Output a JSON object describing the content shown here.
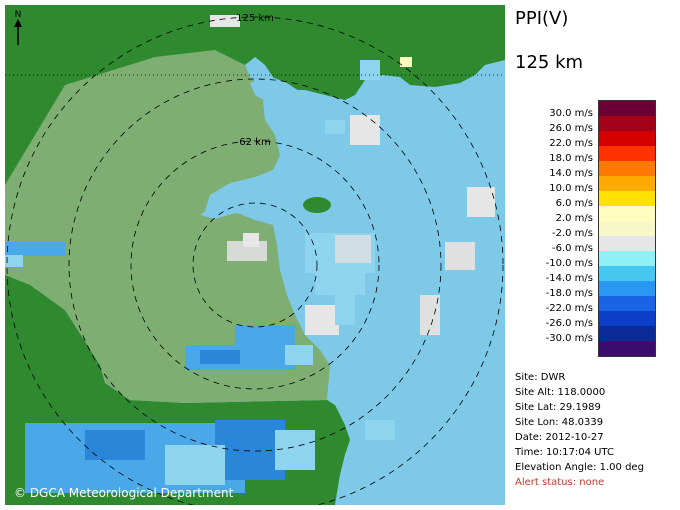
{
  "product": {
    "title": "PPI(V)",
    "range": "125 km"
  },
  "map": {
    "range_labels": [
      "125 km",
      "62 km"
    ],
    "north_label": "N",
    "copyright": "© DGCA Meteorological Department",
    "colors": {
      "land": "#2f8a2f",
      "sea": "#7ec8e8",
      "kuwait_fill": "#7fae73",
      "echo_light": "#8fd4ef",
      "echo_medium": "#4aa8e8",
      "echo_dark": "#2a86d8",
      "echo_gray": "#e0e0e0"
    }
  },
  "legend": {
    "labels": [
      "30.0 m/s",
      "26.0 m/s",
      "22.0 m/s",
      "18.0 m/s",
      "14.0 m/s",
      "10.0 m/s",
      "6.0 m/s",
      "2.0 m/s",
      "-2.0 m/s",
      "-6.0 m/s",
      "-10.0 m/s",
      "-14.0 m/s",
      "-18.0 m/s",
      "-22.0 m/s",
      "-26.0 m/s",
      "-30.0 m/s"
    ],
    "colors": [
      "#6a0036",
      "#a3001a",
      "#d40000",
      "#ff3300",
      "#ff7a00",
      "#ffaa00",
      "#ffe100",
      "#fffcc0",
      "#f7f7c8",
      "#e6e6e6",
      "#8ff0f6",
      "#46c7ef",
      "#2a97f2",
      "#1a63e4",
      "#0b3fc7",
      "#0a2a98",
      "#3b0d6e"
    ]
  },
  "site_info": {
    "site": "Site: DWR",
    "alt": "Site Alt: 118.0000",
    "lat": "Site Lat: 29.1989",
    "lon": "Site Lon: 48.0339",
    "date": "Date: 2012-10-27",
    "time": "Time: 10:17:04 UTC",
    "elevation": "Elevation Angle: 1.00 deg",
    "alert": "Alert status: none"
  }
}
